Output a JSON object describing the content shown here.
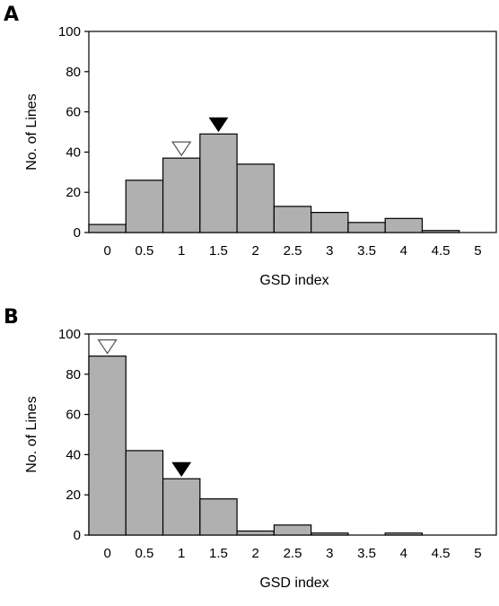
{
  "chart_data": [
    {
      "panel_label": "A",
      "type": "bar",
      "categories": [
        "0",
        "0.5",
        "1",
        "1.5",
        "2",
        "2.5",
        "3",
        "3.5",
        "4",
        "4.5",
        "5"
      ],
      "values": [
        4,
        26,
        37,
        49,
        34,
        13,
        10,
        5,
        7,
        1,
        0
      ],
      "xlabel": "GSD index",
      "ylabel": "No. of Lines",
      "ylim": [
        0,
        100
      ],
      "yticks": [
        "0",
        "20",
        "40",
        "60",
        "80",
        "100"
      ],
      "grid": false,
      "bar_color": "#b0b0b0",
      "markers": [
        {
          "kind": "open-triangle",
          "category": "1"
        },
        {
          "kind": "filled-triangle",
          "category": "1.5"
        }
      ]
    },
    {
      "panel_label": "B",
      "type": "bar",
      "categories": [
        "0",
        "0.5",
        "1",
        "1.5",
        "2",
        "2.5",
        "3",
        "3.5",
        "4",
        "4.5",
        "5"
      ],
      "values": [
        89,
        42,
        28,
        18,
        2,
        5,
        1,
        0,
        1,
        0,
        0
      ],
      "xlabel": "GSD index",
      "ylabel": "No. of Lines",
      "ylim": [
        0,
        100
      ],
      "yticks": [
        "0",
        "20",
        "40",
        "60",
        "80",
        "100"
      ],
      "grid": false,
      "bar_color": "#b0b0b0",
      "markers": [
        {
          "kind": "open-triangle",
          "category": "0"
        },
        {
          "kind": "filled-triangle",
          "category": "1"
        }
      ]
    }
  ]
}
